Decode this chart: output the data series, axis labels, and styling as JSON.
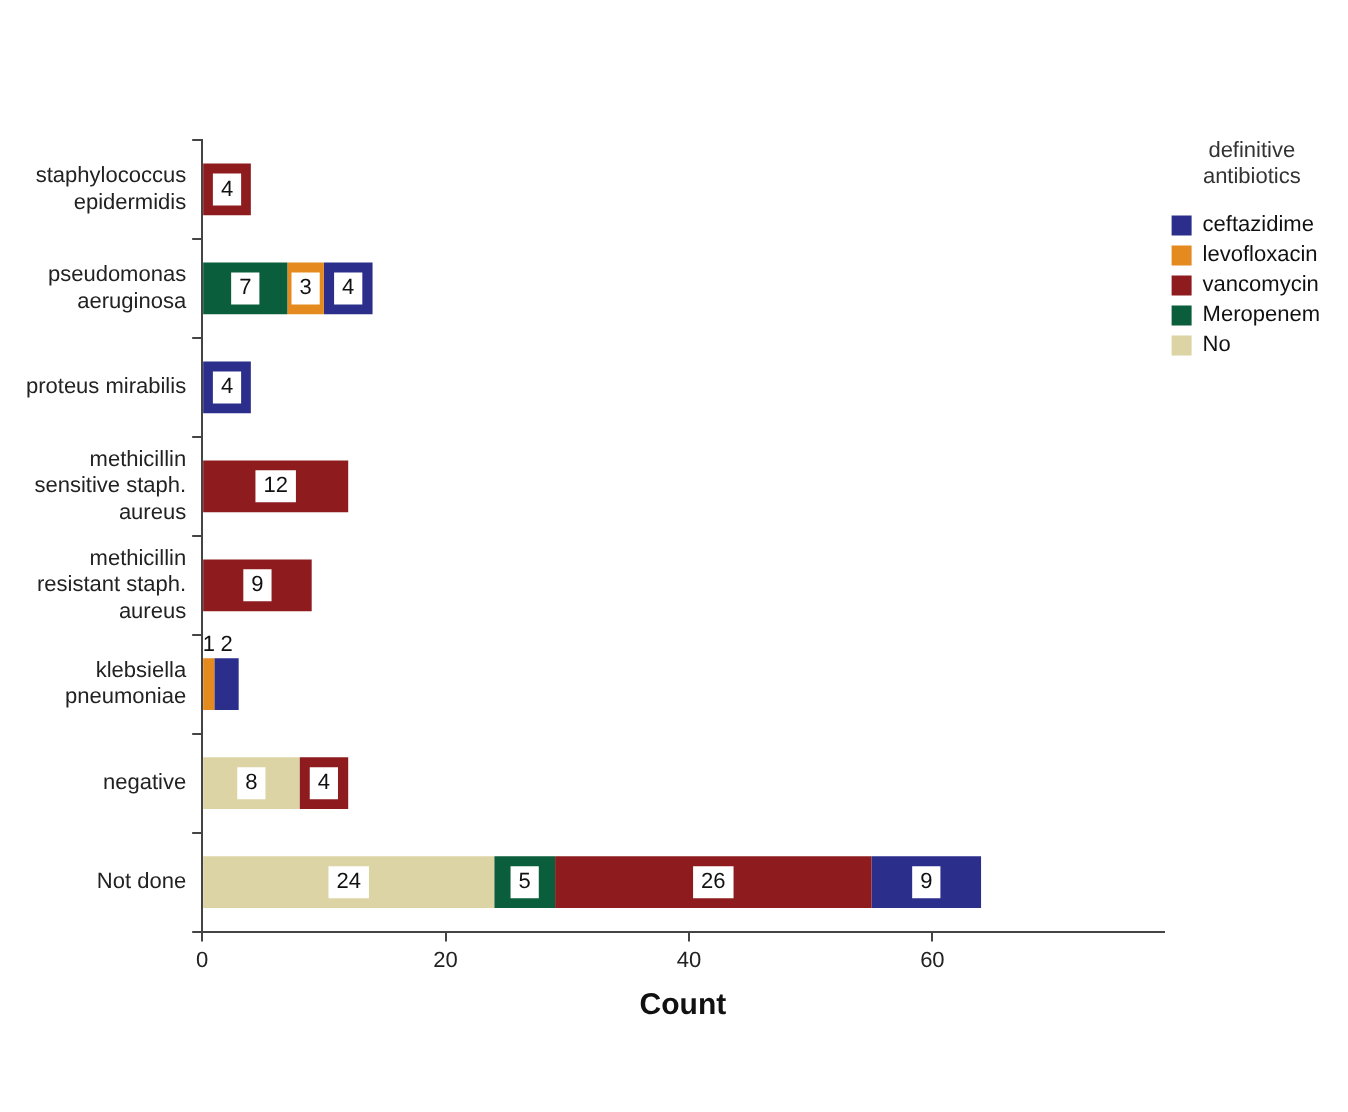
{
  "chart_data": {
    "type": "bar",
    "orientation": "horizontal",
    "stacked": true,
    "xlabel": "Count",
    "legend_title": "definitive antibiotics",
    "legend": "right",
    "categories": [
      "staphylococcus epidermidis",
      "pseudomonas aeruginosa",
      "proteus mirabilis",
      "methicillin sensitive staph. aureus",
      "methicillin resistant staph. aureus",
      "klebsiella pneumoniae",
      "negative",
      "Not done"
    ],
    "series": [
      {
        "name": "No",
        "color": "#dcd4a4",
        "values": [
          null,
          null,
          null,
          null,
          null,
          null,
          8,
          24
        ]
      },
      {
        "name": "Meropenem",
        "color": "#0b5e3b",
        "values": [
          null,
          7,
          null,
          null,
          null,
          null,
          null,
          5
        ]
      },
      {
        "name": "vancomycin",
        "color": "#8e1c1f",
        "values": [
          4,
          null,
          null,
          12,
          9,
          null,
          4,
          26
        ]
      },
      {
        "name": "levofloxacin",
        "color": "#e48a1e",
        "values": [
          null,
          3,
          null,
          null,
          null,
          1,
          null,
          null
        ]
      },
      {
        "name": "ceftazidime",
        "color": "#2b2e8a",
        "values": [
          null,
          4,
          4,
          null,
          null,
          2,
          null,
          9
        ]
      }
    ],
    "xlim": [
      0,
      79
    ],
    "xticks": [
      0,
      20,
      40,
      60
    ],
    "data_labels": true,
    "grid": false
  }
}
